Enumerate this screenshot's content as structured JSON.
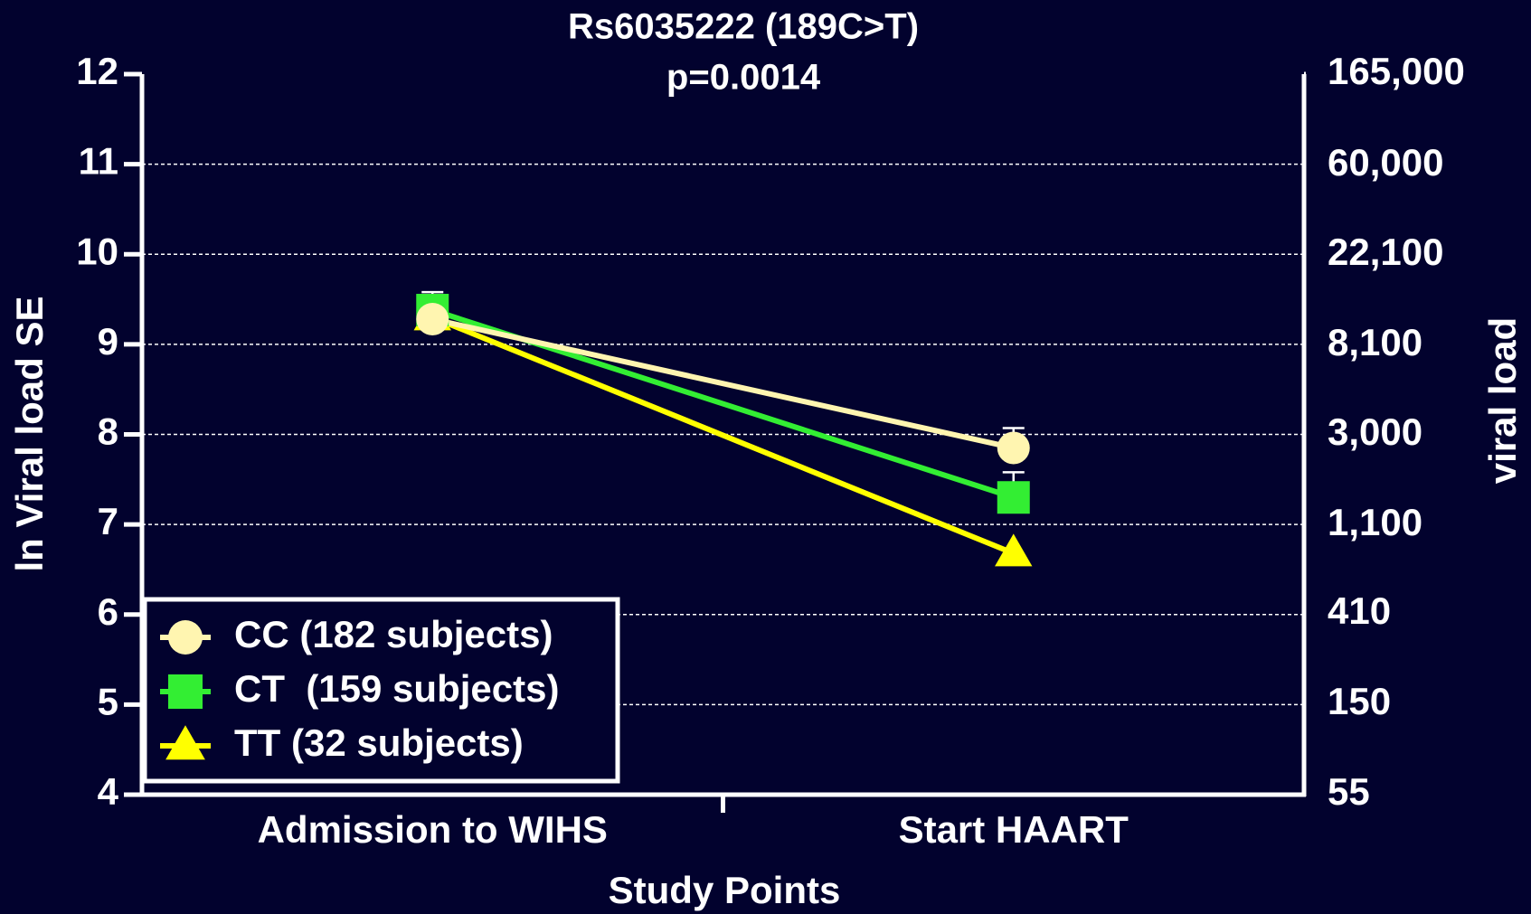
{
  "chart_data": {
    "type": "line",
    "title": "Rs6035222 (189C>T)",
    "subtitle": "p=0.0014",
    "x_label": "Study Points",
    "y_label": "ln Viral load  SE",
    "y2_label": "viral load",
    "categories": [
      "Admission to WIHS",
      "Start HAART"
    ],
    "series": [
      {
        "name": "CC (182 subjects)",
        "color": "#fff5b0",
        "marker": "circle",
        "values": [
          9.28,
          7.85
        ],
        "errors": [
          0.15,
          0.22
        ]
      },
      {
        "name": "CT  (159 subjects)",
        "color": "#33ee33",
        "marker": "square",
        "values": [
          9.38,
          7.3
        ],
        "errors": [
          0.2,
          0.28
        ]
      },
      {
        "name": "TT (32 subjects)",
        "color": "#ffff00",
        "marker": "triangle",
        "values": [
          9.3,
          6.68
        ]
      }
    ],
    "ylim": [
      4,
      12
    ],
    "yticks": [
      4,
      5,
      6,
      7,
      8,
      9,
      10,
      11,
      12
    ],
    "y2lim": [
      55,
      165000
    ],
    "y2log": true,
    "y2ticks": [
      55,
      150,
      410,
      {
        "value": 1100,
        "label": "1,100"
      },
      {
        "value": 3000,
        "label": "3,000"
      },
      {
        "value": 8100,
        "label": "8,100"
      },
      {
        "value": 22100,
        "label": "22,100"
      },
      {
        "value": 60000,
        "label": "60,000"
      },
      {
        "value": 165000,
        "label": "165,000"
      }
    ],
    "grid": true,
    "legend": "lower left"
  }
}
